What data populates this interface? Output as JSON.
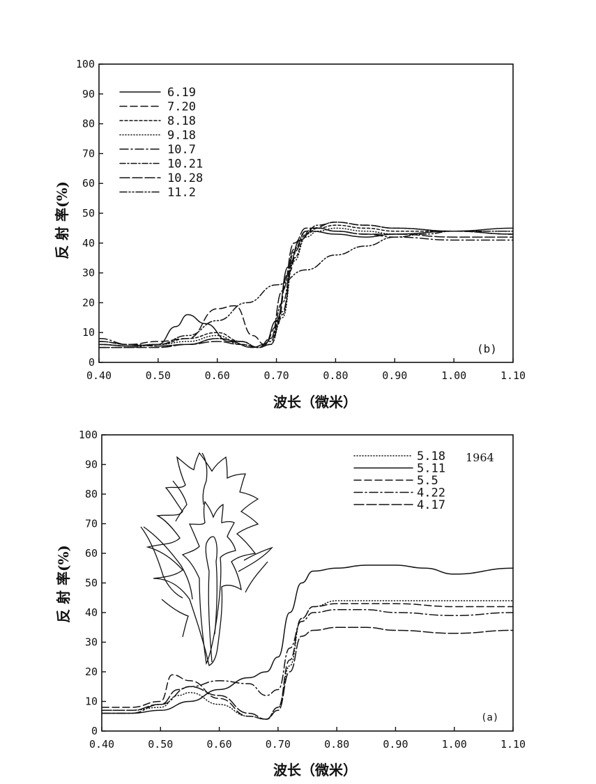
{
  "chart_data": [
    {
      "type": "line",
      "panel_label": "(b)",
      "xlabel": "波长（微米）",
      "ylabel": "反 射 率(%)",
      "xlim": [
        0.4,
        1.1
      ],
      "ylim": [
        0,
        100
      ],
      "x_ticks": [
        "0.40",
        "0.50",
        "0.60",
        "0.70",
        "0.80",
        "0.90",
        "1.00",
        "1.10"
      ],
      "y_ticks": [
        "0",
        "10",
        "20",
        "30",
        "40",
        "50",
        "60",
        "70",
        "80",
        "90",
        "100"
      ],
      "legend_position": "top-left",
      "series": [
        {
          "name": "6.19",
          "dash": "solid",
          "x": [
            0.4,
            0.45,
            0.5,
            0.53,
            0.55,
            0.58,
            0.62,
            0.66,
            0.68,
            0.7,
            0.72,
            0.74,
            0.76,
            0.8,
            0.85,
            0.9,
            1.0,
            1.1
          ],
          "y": [
            6,
            5.5,
            6,
            12,
            16,
            13,
            7,
            5,
            6,
            14,
            32,
            41,
            44,
            43,
            42,
            43,
            44,
            45
          ]
        },
        {
          "name": "7.20",
          "dash": "10,5",
          "x": [
            0.4,
            0.45,
            0.5,
            0.55,
            0.6,
            0.63,
            0.66,
            0.68,
            0.7,
            0.72,
            0.74,
            0.76,
            0.8,
            0.85,
            0.9,
            1.0,
            1.1
          ],
          "y": [
            7,
            6,
            7,
            8,
            18,
            19,
            9,
            6,
            12,
            30,
            41,
            45,
            47,
            46,
            45,
            44,
            43
          ]
        },
        {
          "name": "8.18",
          "dash": "4,3",
          "x": [
            0.4,
            0.45,
            0.5,
            0.55,
            0.6,
            0.64,
            0.67,
            0.69,
            0.71,
            0.73,
            0.75,
            0.77,
            0.8,
            0.85,
            0.9,
            1.0,
            1.1
          ],
          "y": [
            6,
            5.5,
            6,
            8,
            10,
            7,
            5,
            6,
            16,
            35,
            43,
            45,
            46,
            45,
            44,
            44,
            43
          ]
        },
        {
          "name": "9.18",
          "dash": "1,3",
          "x": [
            0.4,
            0.45,
            0.5,
            0.55,
            0.6,
            0.64,
            0.67,
            0.69,
            0.71,
            0.73,
            0.75,
            0.77,
            0.8,
            0.85,
            0.9,
            1.0,
            1.1
          ],
          "y": [
            6,
            5.5,
            6,
            7,
            9,
            6,
            5,
            6,
            15,
            34,
            42,
            44,
            45,
            44,
            43,
            44,
            44
          ]
        },
        {
          "name": "10.7",
          "dash": "12,4,2,4",
          "x": [
            0.4,
            0.45,
            0.5,
            0.55,
            0.6,
            0.64,
            0.67,
            0.69,
            0.71,
            0.73,
            0.75,
            0.77,
            0.8,
            0.85,
            0.9,
            1.0,
            1.1
          ],
          "y": [
            8,
            6,
            5.5,
            6,
            8,
            7,
            5,
            6,
            17,
            37,
            44,
            45,
            44,
            43,
            42,
            41,
            41
          ]
        },
        {
          "name": "10.21",
          "dash": "8,3,2,3",
          "x": [
            0.4,
            0.45,
            0.5,
            0.55,
            0.6,
            0.64,
            0.67,
            0.69,
            0.71,
            0.73,
            0.75,
            0.77,
            0.8,
            0.85,
            0.9,
            1.0,
            1.1
          ],
          "y": [
            7,
            6,
            5.5,
            6,
            8,
            7,
            5,
            7,
            20,
            38,
            44,
            46,
            47,
            46,
            45,
            44,
            43
          ]
        },
        {
          "name": "10.28",
          "dash": "14,4",
          "x": [
            0.4,
            0.45,
            0.5,
            0.55,
            0.6,
            0.64,
            0.67,
            0.69,
            0.71,
            0.73,
            0.75,
            0.77,
            0.8,
            0.85,
            0.9,
            1.0,
            1.1
          ],
          "y": [
            5,
            5,
            5,
            6,
            7,
            6,
            5,
            8,
            24,
            40,
            45,
            45,
            44,
            43,
            43,
            42,
            42
          ]
        },
        {
          "name": "11.2",
          "dash": "10,3,2,3,2,3",
          "x": [
            0.4,
            0.45,
            0.5,
            0.55,
            0.6,
            0.65,
            0.7,
            0.75,
            0.8,
            0.85,
            0.9,
            0.95,
            1.0,
            1.1
          ],
          "y": [
            5,
            5,
            6,
            9,
            14,
            20,
            26,
            31,
            36,
            39,
            42,
            43,
            44,
            44
          ]
        }
      ]
    },
    {
      "type": "line",
      "panel_label": "(a)",
      "annotation": "1964",
      "xlabel": "波长（微米）",
      "ylabel": "反 射 率(%)",
      "xlim": [
        0.4,
        1.1
      ],
      "ylim": [
        0,
        100
      ],
      "x_ticks": [
        "0.40",
        "0.50",
        "0.60",
        "0.70",
        "0.80",
        "0.90",
        "1.00",
        "1.10"
      ],
      "y_ticks": [
        "0",
        "10",
        "20",
        "30",
        "40",
        "50",
        "60",
        "70",
        "80",
        "90",
        "100"
      ],
      "legend_position": "top-right",
      "series": [
        {
          "name": "5.18",
          "dash": "1,3",
          "x": [
            0.4,
            0.45,
            0.5,
            0.53,
            0.55,
            0.6,
            0.65,
            0.68,
            0.7,
            0.72,
            0.74,
            0.76,
            0.8,
            0.85,
            0.9,
            1.0,
            1.1
          ],
          "y": [
            7,
            7,
            8,
            12,
            13,
            9,
            5,
            4,
            8,
            22,
            38,
            42,
            44,
            44,
            44,
            44,
            44
          ]
        },
        {
          "name": "5.11",
          "dash": "solid",
          "x": [
            0.4,
            0.45,
            0.5,
            0.55,
            0.6,
            0.65,
            0.68,
            0.7,
            0.72,
            0.74,
            0.76,
            0.8,
            0.85,
            0.9,
            0.95,
            1.0,
            1.1
          ],
          "y": [
            6,
            6,
            7,
            10,
            14,
            18,
            20,
            25,
            40,
            50,
            54,
            55,
            56,
            56,
            55,
            53,
            55
          ]
        },
        {
          "name": "5.5",
          "dash": "10,5",
          "x": [
            0.4,
            0.45,
            0.5,
            0.52,
            0.55,
            0.6,
            0.65,
            0.68,
            0.7,
            0.72,
            0.74,
            0.76,
            0.8,
            0.85,
            0.9,
            1.0,
            1.1
          ],
          "y": [
            8,
            8,
            10,
            19,
            17,
            11,
            5,
            4,
            8,
            24,
            38,
            42,
            43,
            43,
            43,
            42,
            42
          ]
        },
        {
          "name": "4.22",
          "dash": "12,4,2,4",
          "x": [
            0.4,
            0.45,
            0.5,
            0.55,
            0.6,
            0.65,
            0.68,
            0.7,
            0.72,
            0.74,
            0.76,
            0.8,
            0.85,
            0.9,
            1.0,
            1.1
          ],
          "y": [
            6,
            6,
            9,
            15,
            17,
            16,
            12,
            14,
            28,
            37,
            40,
            41,
            41,
            40,
            39,
            40
          ]
        },
        {
          "name": "4.17",
          "dash": "14,4",
          "x": [
            0.4,
            0.45,
            0.5,
            0.53,
            0.55,
            0.6,
            0.65,
            0.68,
            0.7,
            0.72,
            0.74,
            0.76,
            0.8,
            0.85,
            0.9,
            1.0,
            1.1
          ],
          "y": [
            7,
            7,
            9,
            14,
            15,
            12,
            6,
            4,
            7,
            20,
            32,
            34,
            35,
            35,
            34,
            33,
            34
          ]
        }
      ]
    }
  ]
}
